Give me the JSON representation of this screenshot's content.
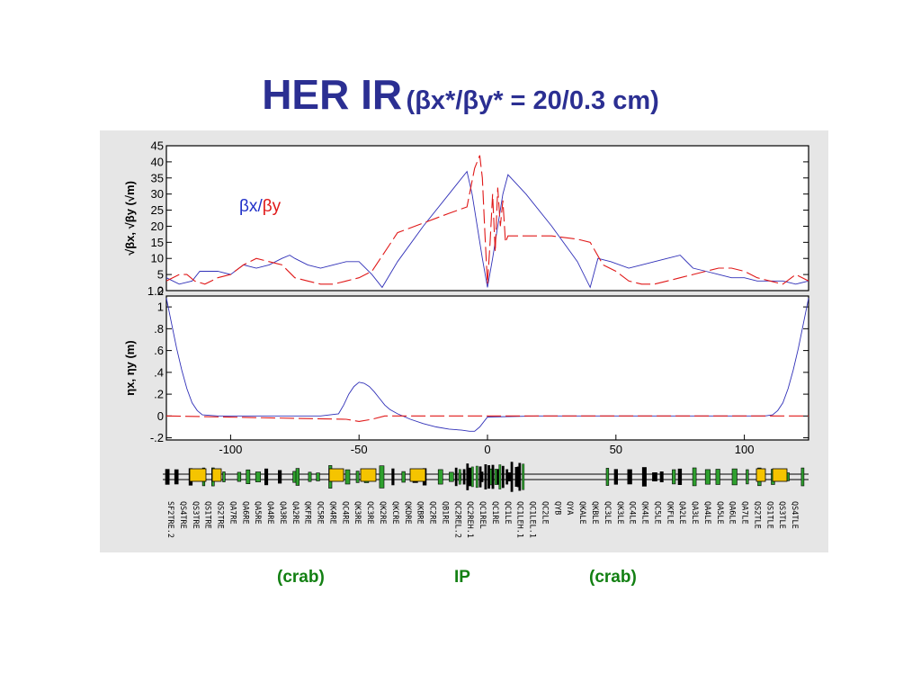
{
  "slide": {
    "title_main": "HER IR",
    "title_sub": "(βx*/βy* = 20/0.3 cm)",
    "footer_labels": [
      "(crab)",
      "IP",
      "(crab)"
    ]
  },
  "chart_data": [
    {
      "type": "line",
      "panel": "beta",
      "ylabel": "√βx, √βy (√m)",
      "legend": [
        {
          "text": "βx",
          "color": "#2030c8"
        },
        {
          "text": "/",
          "color": "#2030c8"
        },
        {
          "text": "βy",
          "color": "#e01818"
        }
      ],
      "xlim": [
        -125,
        125
      ],
      "ylim": [
        0,
        45
      ],
      "yticks": [
        "0",
        "5",
        "10",
        "15",
        "20",
        "25",
        "30",
        "35",
        "40",
        "45"
      ],
      "ytick_values": [
        0,
        5,
        10,
        15,
        20,
        25,
        30,
        35,
        40,
        45
      ],
      "extra_tick_label": "1.2",
      "grid": false,
      "series": [
        {
          "name": "βx",
          "color": "#3030b8",
          "dash": "solid",
          "x": [
            -125,
            -120,
            -115,
            -112,
            -105,
            -100,
            -95,
            -90,
            -85,
            -80,
            -77,
            -75,
            -70,
            -65,
            -60,
            -55,
            -50,
            -45,
            -41,
            -35,
            -25,
            -15,
            -8,
            -6,
            -4,
            -2,
            0,
            2,
            4,
            6,
            8,
            15,
            25,
            35,
            40,
            43,
            48,
            55,
            60,
            65,
            70,
            75,
            80,
            85,
            90,
            95,
            100,
            105,
            110,
            115,
            120,
            125
          ],
          "y": [
            4,
            2,
            3,
            6,
            6,
            5,
            8,
            7,
            8,
            10,
            11,
            10,
            8,
            7,
            8,
            9,
            9,
            5,
            1,
            9,
            20,
            30,
            37,
            30,
            20,
            10,
            1,
            10,
            20,
            30,
            36,
            30,
            20,
            9,
            1,
            10,
            9,
            7,
            8,
            9,
            10,
            11,
            7,
            6,
            5,
            4,
            4,
            3,
            3,
            3,
            2,
            3
          ]
        },
        {
          "name": "βy",
          "color": "#e01818",
          "dash": "dashed",
          "x": [
            -125,
            -120,
            -117,
            -114,
            -110,
            -105,
            -100,
            -95,
            -90,
            -85,
            -80,
            -75,
            -70,
            -65,
            -60,
            -55,
            -50,
            -45,
            -40,
            -35,
            -25,
            -15,
            -8,
            -5,
            -3,
            -2,
            -1,
            0,
            1,
            2,
            3,
            4,
            5,
            6,
            7,
            8,
            15,
            25,
            35,
            40,
            45,
            50,
            55,
            60,
            65,
            70,
            75,
            80,
            85,
            90,
            95,
            100,
            105,
            110,
            115,
            120,
            125
          ],
          "y": [
            3,
            5,
            5,
            3,
            2,
            4,
            5,
            8,
            10,
            9,
            8,
            4,
            3,
            2,
            2,
            3,
            4,
            6,
            12,
            18,
            21,
            24,
            26,
            38,
            42,
            35,
            18,
            2,
            15,
            30,
            12,
            32,
            20,
            28,
            15,
            17,
            17,
            17,
            16,
            15,
            8,
            6,
            3,
            2,
            2,
            3,
            4,
            5,
            6,
            7,
            7,
            6,
            4,
            3,
            2,
            5,
            3
          ]
        }
      ]
    },
    {
      "type": "line",
      "panel": "dispersion",
      "ylabel": "ηx, ηy (m)",
      "xlabel": "",
      "xlim": [
        -125,
        125
      ],
      "xticks": [
        "-100",
        "-50",
        "0",
        "50",
        "100"
      ],
      "xtick_values": [
        -100,
        -50,
        0,
        50,
        100
      ],
      "ylim": [
        -0.22,
        1.1
      ],
      "yticks": [
        "-.2",
        "0",
        ".2",
        ".4",
        ".6",
        ".8",
        "1"
      ],
      "ytick_values": [
        -0.2,
        0,
        0.2,
        0.4,
        0.6,
        0.8,
        1.0
      ],
      "grid": false,
      "series": [
        {
          "name": "ηx",
          "color": "#3030b8",
          "dash": "solid",
          "x": [
            -125,
            -123,
            -121,
            -119,
            -117,
            -115,
            -113,
            -111,
            -105,
            -95,
            -85,
            -75,
            -65,
            -58,
            -56,
            -54,
            -52,
            -50,
            -48,
            -46,
            -44,
            -42,
            -40,
            -38,
            -35,
            -30,
            -25,
            -20,
            -15,
            -10,
            -7,
            -5,
            -3,
            0,
            20,
            40,
            60,
            80,
            100,
            108,
            111,
            113,
            115,
            117,
            119,
            121,
            123,
            125
          ],
          "y": [
            1.08,
            0.85,
            0.62,
            0.42,
            0.25,
            0.12,
            0.05,
            0.01,
            0,
            0,
            0,
            0,
            0,
            0.02,
            0.1,
            0.2,
            0.27,
            0.31,
            0.3,
            0.27,
            0.22,
            0.16,
            0.1,
            0.06,
            0.02,
            -0.03,
            -0.07,
            -0.1,
            -0.12,
            -0.13,
            -0.14,
            -0.14,
            -0.1,
            -0.01,
            0,
            0,
            0,
            0,
            0,
            0,
            0.01,
            0.05,
            0.12,
            0.25,
            0.42,
            0.62,
            0.85,
            1.08
          ]
        },
        {
          "name": "ηy",
          "color": "#e01818",
          "dash": "dashed",
          "x": [
            -125,
            -55,
            -50,
            -45,
            -40,
            0,
            125
          ],
          "y": [
            0,
            -0.03,
            -0.05,
            -0.03,
            0,
            0,
            0
          ]
        }
      ]
    }
  ],
  "lattice": {
    "element_labels": [
      "SF2TRE.2",
      "QS4TRE",
      "QS3TRE",
      "QS1TRE",
      "QS2TRE",
      "QA7RE",
      "QA6RE",
      "QA5RE",
      "QA4RE",
      "QA3RE",
      "QA2RE",
      "QKFRE",
      "QC5RE",
      "QK4RE",
      "QC4RE",
      "QK3RE",
      "QC3RE",
      "QK2RE",
      "QKCRE",
      "QKDRE",
      "QKBRE",
      "QC2RE",
      "QB1RE",
      "QC2REL.2",
      "QC2REH.1",
      "QC1REL",
      "QC1RE",
      "QC1LE",
      "QC1LEH.1",
      "QC1LEL.1",
      "QC2LE",
      "QYB",
      "QYA",
      "QKALE",
      "QKBLE",
      "QC3LE",
      "QK3LE",
      "QC4LE",
      "QK4LE",
      "QC5LE",
      "QKFLE",
      "QA2LE",
      "QA3LE",
      "QA4LE",
      "QA5LE",
      "QA6LE",
      "QA7LE",
      "QS2TLE",
      "QS1TLE",
      "QS3TLE",
      "QS4TLE"
    ]
  }
}
